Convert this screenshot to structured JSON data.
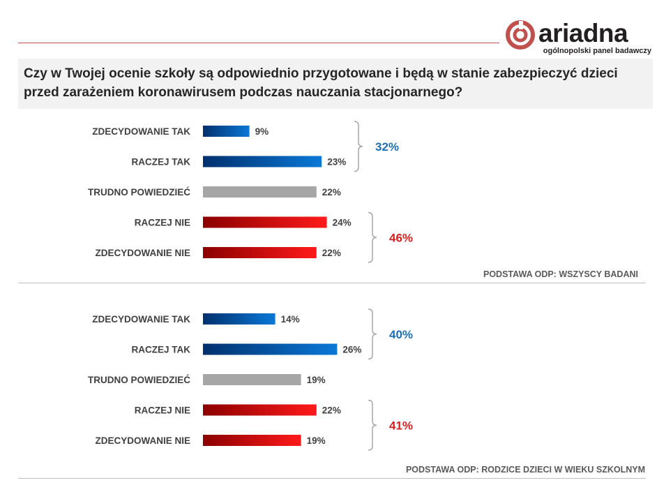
{
  "logo": {
    "wordmark": "ariadna",
    "tagline": "ogólnopolski panel badawczy"
  },
  "question": "Czy w Twojej ocenie szkoły są odpowiednio przygotowane i będą w stanie zabezpieczyć dzieci przed zarażeniem koronawirusem podczas nauczania stacjonarnego?",
  "colors": {
    "blue": "#0070c0",
    "red": "#e00000",
    "gray": "#a6a6a6",
    "brand": "#c0504d"
  },
  "chart_data": [
    {
      "type": "bar",
      "orientation": "horizontal",
      "categories": [
        "ZDECYDOWANIE  TAK",
        "RACZEJ TAK",
        "TRUDNO  POWIEDZIEĆ",
        "RACZEJ NIE",
        "ZDECYDOWANIE  NIE"
      ],
      "values": [
        9,
        23,
        22,
        24,
        22
      ],
      "value_labels": [
        "9%",
        "23%",
        "22%",
        "24%",
        "22%"
      ],
      "bar_colors": [
        "blue",
        "blue",
        "gray",
        "red",
        "red"
      ],
      "groups": [
        {
          "rows": [
            0,
            1
          ],
          "total_label": "32%",
          "color": "blue"
        },
        {
          "rows": [
            3,
            4
          ],
          "total_label": "46%",
          "color": "red"
        }
      ],
      "base": "PODSTAWA ODP: WSZYSCY BADANI"
    },
    {
      "type": "bar",
      "orientation": "horizontal",
      "categories": [
        "ZDECYDOWANIE  TAK",
        "RACZEJ TAK",
        "TRUDNO  POWIEDZIEĆ",
        "RACZEJ NIE",
        "ZDECYDOWANIE  NIE"
      ],
      "values": [
        14,
        26,
        19,
        22,
        19
      ],
      "value_labels": [
        "14%",
        "26%",
        "19%",
        "22%",
        "19%"
      ],
      "bar_colors": [
        "blue",
        "blue",
        "gray",
        "red",
        "red"
      ],
      "groups": [
        {
          "rows": [
            0,
            1
          ],
          "total_label": "40%",
          "color": "blue"
        },
        {
          "rows": [
            3,
            4
          ],
          "total_label": "41%",
          "color": "red"
        }
      ],
      "base": "PODSTAWA ODP: RODZICE DZIECI W WIEKU SZKOLNYM"
    }
  ]
}
